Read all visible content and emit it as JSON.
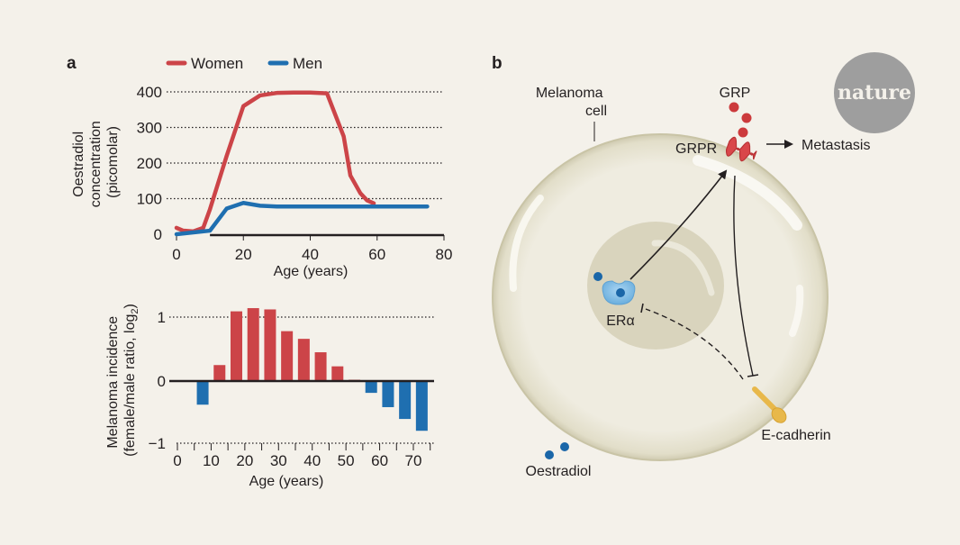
{
  "figure": {
    "panel_a_label": "a",
    "panel_b_label": "b",
    "logo_text": "nature",
    "colors": {
      "women": "#cc4448",
      "men": "#1f6fb0",
      "background": "#f4f1ea",
      "cell": "#ebe7d8",
      "nucleus": "#d9d4bd",
      "logo": "#9e9e9e",
      "ecadherin": "#e8b84a",
      "oestradiol": "#1a66a8",
      "era": "#7fb8e0"
    }
  },
  "chart_data": [
    {
      "type": "line",
      "title": "",
      "xlabel": "Age (years)",
      "ylabel": "Oestradiol concentration (picomolar)",
      "ylabel_lines": [
        "Oestradiol",
        "concentration",
        "(picomolar)"
      ],
      "xlim": [
        0,
        80
      ],
      "ylim": [
        0,
        400
      ],
      "xticks": [
        0,
        20,
        40,
        60,
        80
      ],
      "yticks": [
        0,
        100,
        200,
        300,
        400
      ],
      "xtick_labels": [
        "0",
        "20",
        "40",
        "60",
        "80"
      ],
      "ytick_labels": [
        "0",
        "100",
        "200",
        "300",
        "400"
      ],
      "grid": "horizontal-dotted",
      "legend_position": "top",
      "series": [
        {
          "name": "Women",
          "x": [
            0,
            2,
            5,
            8,
            10,
            15,
            20,
            25,
            30,
            35,
            40,
            45,
            50,
            52,
            55,
            57,
            59
          ],
          "y": [
            18,
            10,
            8,
            18,
            70,
            220,
            360,
            390,
            397,
            398,
            398,
            396,
            275,
            165,
            115,
            95,
            87
          ]
        },
        {
          "name": "Men",
          "x": [
            0,
            5,
            10,
            15,
            20,
            25,
            30,
            40,
            50,
            60,
            70,
            75
          ],
          "y": [
            0,
            5,
            10,
            72,
            88,
            80,
            78,
            78,
            78,
            78,
            78,
            78
          ]
        }
      ]
    },
    {
      "type": "bar",
      "title": "",
      "xlabel": "Age (years)",
      "ylabel": "Melanoma incidence (female/male ratio, log2)",
      "ylabel_lines": [
        "Melanoma incidence",
        "(female/male ratio, log",
        "2",
        ")"
      ],
      "xlim": [
        0,
        75
      ],
      "ylim": [
        -1,
        1
      ],
      "xticks": [
        0,
        10,
        20,
        30,
        40,
        50,
        60,
        70
      ],
      "xtick_labels": [
        "0",
        "10",
        "20",
        "30",
        "40",
        "50",
        "60",
        "70"
      ],
      "yticks": [
        -1,
        0,
        1
      ],
      "ytick_labels": [
        "−1",
        "0",
        "1"
      ],
      "grid": "horizontal-dotted",
      "categories": [
        "5-9",
        "10-14",
        "15-19",
        "20-24",
        "25-29",
        "30-34",
        "35-39",
        "40-44",
        "45-49",
        "50-54",
        "55-59",
        "60-64",
        "65-69",
        "70-74"
      ],
      "bin_centers": [
        7.5,
        12.5,
        17.5,
        22.5,
        27.5,
        32.5,
        37.5,
        42.5,
        47.5,
        52.5,
        57.5,
        62.5,
        67.5,
        72.5
      ],
      "values": [
        -0.38,
        0.25,
        1.09,
        1.14,
        1.12,
        0.78,
        0.66,
        0.45,
        0.23,
        0.02,
        -0.19,
        -0.42,
        -0.61,
        -0.8
      ]
    }
  ],
  "diagram": {
    "labels": {
      "melanoma_cell": [
        "Melanoma",
        "cell"
      ],
      "grp": "GRP",
      "grpr": "GRPR",
      "metastasis": "Metastasis",
      "era": "ERα",
      "ecadherin": "E-cadherin",
      "oestradiol": "Oestradiol"
    }
  }
}
